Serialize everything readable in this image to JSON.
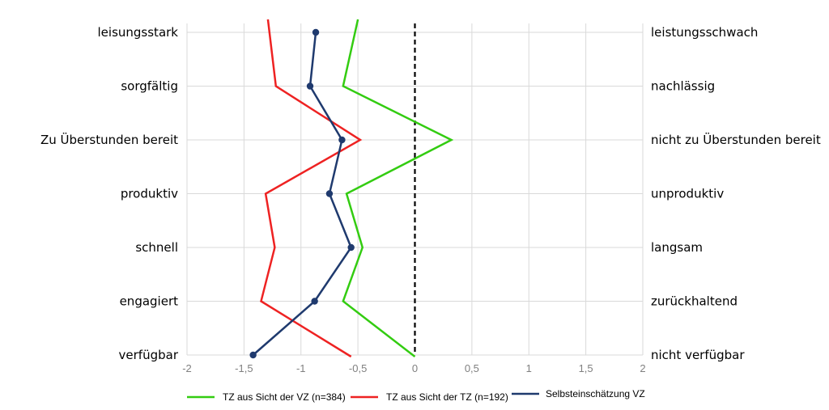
{
  "chart_data": {
    "type": "line",
    "orientation": "vertical-profile",
    "left_labels": [
      "leisungsstark",
      "sorgfältig",
      "Zu Überstunden bereit",
      "produktiv",
      "schnell",
      "engagiert",
      "verfügbar"
    ],
    "right_labels": [
      "leistungsschwach",
      "nachlässig",
      "nicht zu Überstunden bereit",
      "unproduktiv",
      "langsam",
      "zurückhaltend",
      "nicht verfügbar"
    ],
    "x_ticks": [
      "-2",
      "-1,5",
      "-1",
      "-0,5",
      "0",
      "0,5",
      "1",
      "1,5",
      "2"
    ],
    "x_tick_values": [
      -2,
      -1.5,
      -1,
      -0.5,
      0,
      0.5,
      1,
      1.5,
      2
    ],
    "xlim": [
      -2,
      2
    ],
    "reference_line": 0,
    "grid": true,
    "legend_position": "bottom",
    "series": [
      {
        "name": "TZ aus Sicht der VZ (n=384)",
        "color": "#33cc11",
        "markers": false,
        "values": [
          -0.5,
          -0.63,
          0.32,
          -0.6,
          -0.46,
          -0.63,
          0.0
        ]
      },
      {
        "name": "TZ aus Sicht der TZ (n=192)",
        "color": "#ee2222",
        "markers": false,
        "values": [
          -1.29,
          -1.22,
          -0.48,
          -1.31,
          -1.23,
          -1.35,
          -0.56
        ]
      },
      {
        "name": "Selbsteinschätzung VZ",
        "color": "#1f3a6e",
        "markers": true,
        "values": [
          -0.87,
          -0.92,
          -0.64,
          -0.75,
          -0.56,
          -0.88,
          -1.42
        ]
      }
    ]
  }
}
